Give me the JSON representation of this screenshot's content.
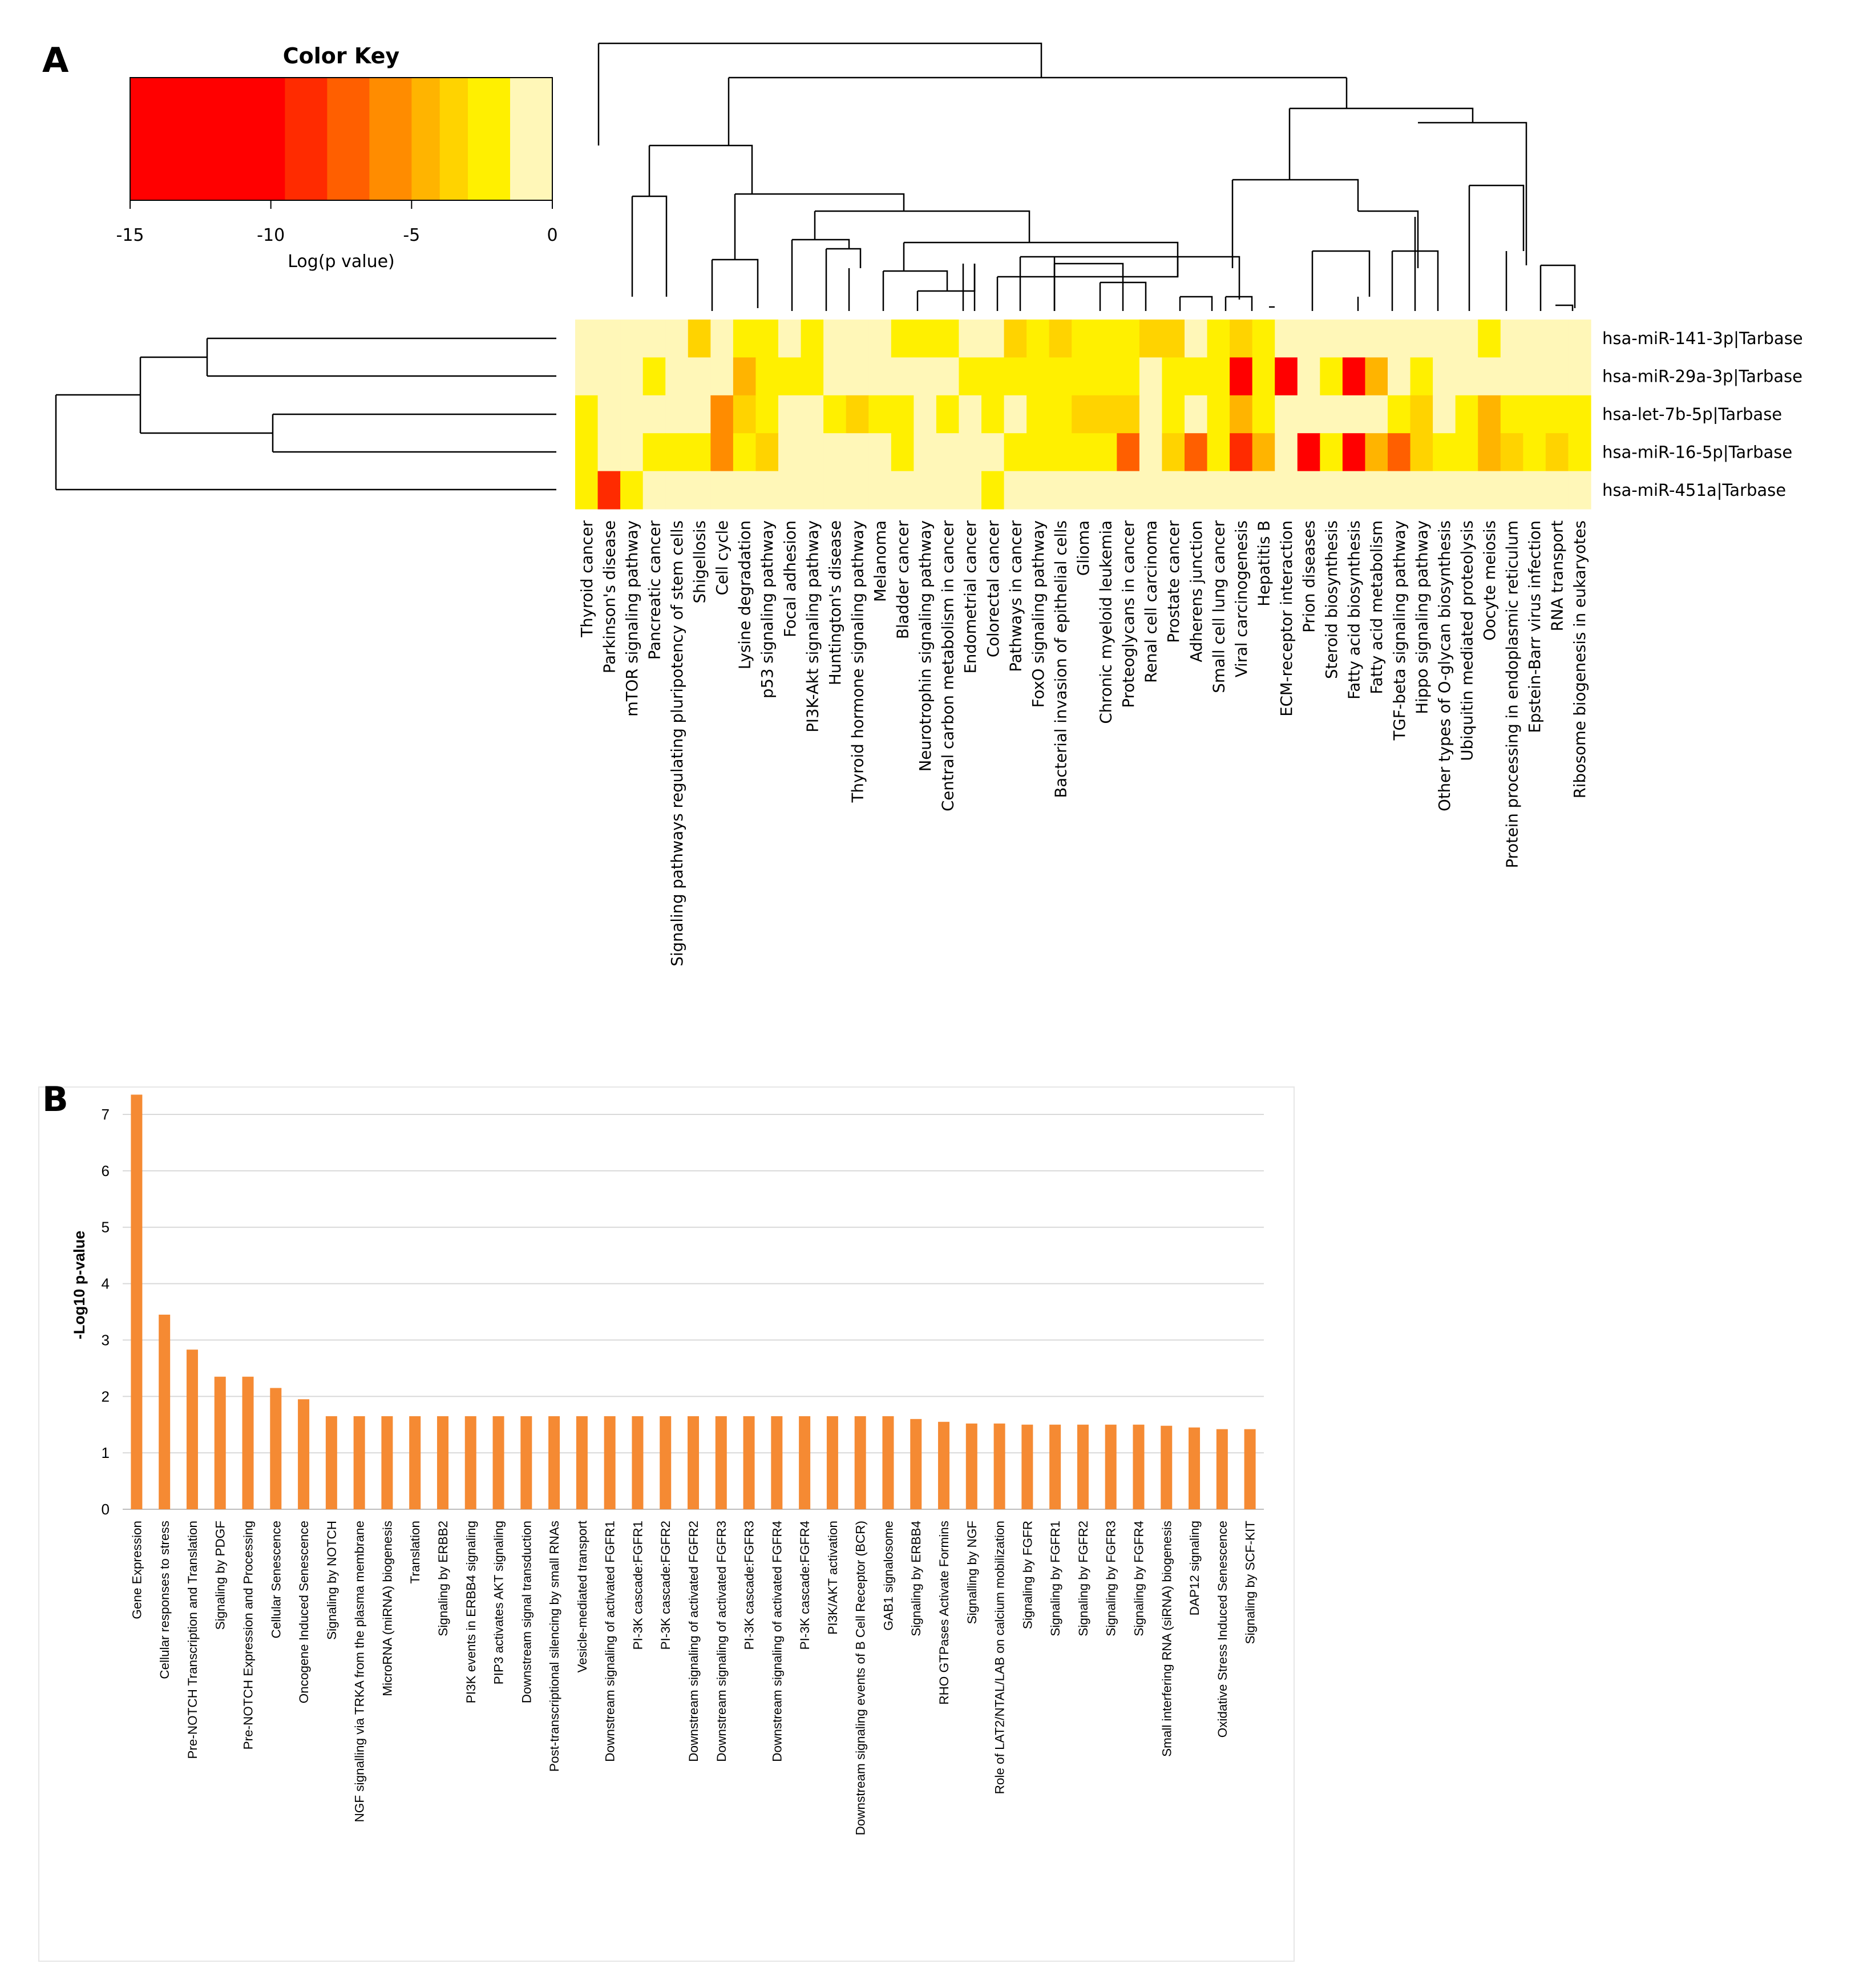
{
  "panel_a": {
    "letter": "A",
    "color_key": {
      "title": "Color Key",
      "xlabel": "Log(p value)",
      "ticks": [
        "-15",
        "-10",
        "-5",
        "0"
      ],
      "range": [
        -15,
        0
      ],
      "bins": [
        {
          "from": -15,
          "to": -9.5,
          "color": "#ff0000"
        },
        {
          "from": -9.5,
          "to": -8,
          "color": "#ff2b00"
        },
        {
          "from": -8,
          "to": -6.5,
          "color": "#ff5f00"
        },
        {
          "from": -6.5,
          "to": -5,
          "color": "#ff8c00"
        },
        {
          "from": -5,
          "to": -4,
          "color": "#ffb400"
        },
        {
          "from": -4,
          "to": -3,
          "color": "#ffd300"
        },
        {
          "from": -3,
          "to": -1.5,
          "color": "#fff000"
        },
        {
          "from": -1.5,
          "to": 0,
          "color": "#fff7b8"
        }
      ]
    }
  },
  "panel_b": {
    "letter": "B"
  },
  "chart_data": [
    {
      "type": "heatmap",
      "title": "",
      "value_label": "Log(p value)",
      "rows": [
        "hsa-miR-141-3p|Tarbase",
        "hsa-miR-29a-3p|Tarbase",
        "hsa-let-7b-5p|Tarbase",
        "hsa-miR-16-5p|Tarbase",
        "hsa-miR-451a|Tarbase"
      ],
      "columns": [
        "Thyroid cancer",
        "Parkinson's disease",
        "mTOR signaling pathway",
        "Pancreatic cancer",
        "Signaling pathways regulating pluripotency of stem cells",
        "Shigellosis",
        "Cell cycle",
        "Lysine degradation",
        "p53 signaling pathway",
        "Focal adhesion",
        "PI3K-Akt signaling pathway",
        "Huntington's disease",
        "Thyroid hormone signaling pathway",
        "Melanoma",
        "Bladder cancer",
        "Neurotrophin signaling pathway",
        "Central carbon metabolism in cancer",
        "Endometrial cancer",
        "Colorectal cancer",
        "Pathways in cancer",
        "FoxO signaling pathway",
        "Bacterial invasion of epithelial cells",
        "Glioma",
        "Chronic myeloid leukemia",
        "Proteoglycans in cancer",
        "Renal cell carcinoma",
        "Prostate cancer",
        "Adherens junction",
        "Small cell lung cancer",
        "Viral carcinogenesis",
        "Hepatitis B",
        "ECM-receptor interaction",
        "Prion diseases",
        "Steroid biosynthesis",
        "Fatty acid biosynthesis",
        "Fatty acid metabolism",
        "TGF-beta signaling pathway",
        "Hippo signaling pathway",
        "Other types of O-glycan biosynthesis",
        "Ubiquitin mediated proteolysis",
        "Oocyte meiosis",
        "Protein processing in endoplasmic reticulum",
        "Epstein-Barr virus infection",
        "RNA transport",
        "Ribosome biogenesis in eukaryotes"
      ],
      "values": [
        [
          0,
          0,
          0,
          0,
          0,
          -3.5,
          0,
          -2.5,
          -2.5,
          0,
          -2.5,
          0,
          0,
          0,
          -2.5,
          -2.5,
          -2.5,
          0,
          0,
          -3.5,
          -2.5,
          -3.5,
          -2.5,
          -2.5,
          -2.5,
          -3.5,
          -3.5,
          0,
          -2.5,
          -3.5,
          -2.5,
          0,
          0,
          0,
          0,
          0,
          0,
          0,
          0,
          0,
          -2.5,
          0,
          0,
          0,
          0
        ],
        [
          0,
          0,
          0,
          -2.5,
          0,
          0,
          0,
          -4,
          -2.5,
          -2.5,
          -2.5,
          0,
          0,
          0,
          0,
          0,
          0,
          -2.5,
          -2.5,
          -2.5,
          -2.5,
          -2.5,
          -2.5,
          -2.5,
          -2.5,
          0,
          -2.5,
          -2.5,
          -2.5,
          -12,
          -2.5,
          -11,
          0,
          -2.5,
          -12,
          -4.5,
          0,
          -2.5,
          0,
          0,
          0,
          0,
          0,
          0,
          0
        ],
        [
          -2.5,
          0,
          0,
          0,
          0,
          0,
          -6,
          -3.5,
          -2.5,
          0,
          0,
          -2.5,
          -3.5,
          -2.5,
          -2.5,
          0,
          -2.5,
          0,
          -2.5,
          0,
          -2.5,
          -2.5,
          -3.5,
          -3.5,
          -3.5,
          0,
          -2.5,
          0,
          -2.5,
          -4.5,
          -2.5,
          0,
          0,
          0,
          0,
          0,
          -2.5,
          -3.5,
          0,
          -2.5,
          -4.5,
          -2.5,
          -2.5,
          -2.5,
          -2.5
        ],
        [
          -2.5,
          0,
          0,
          -2.5,
          -2.5,
          -2.5,
          -5,
          -2.5,
          -3.5,
          0,
          0,
          0,
          0,
          0,
          -2.5,
          0,
          0,
          0,
          0,
          -2.5,
          -2.5,
          -2.5,
          -2.5,
          -2.5,
          -6.5,
          0,
          -3.5,
          -7,
          -2.5,
          -8,
          -4.5,
          0,
          -12,
          -2.5,
          -12,
          -4,
          -7,
          -3.5,
          -2.5,
          -2.5,
          -4,
          -3.5,
          -2.5,
          -3.5,
          -2.5
        ],
        [
          -2.5,
          -8,
          -2.5,
          0,
          0,
          0,
          0,
          0,
          0,
          0,
          0,
          0,
          0,
          0,
          0,
          0,
          0,
          0,
          -2.5,
          0,
          0,
          0,
          0,
          0,
          0,
          0,
          0,
          0,
          0,
          0,
          0,
          0,
          0,
          0,
          0,
          0,
          0,
          0,
          0,
          0,
          0,
          0,
          0,
          0,
          0
        ]
      ]
    },
    {
      "type": "bar",
      "title": "",
      "xlabel": "",
      "ylabel": "-Log10 p-value",
      "ylim": [
        0,
        7
      ],
      "yticks": [
        0,
        1,
        2,
        3,
        4,
        5,
        6,
        7
      ],
      "grid": true,
      "bar_color": "#f58a33",
      "categories": [
        "Gene Expression",
        "Cellular responses to stress",
        "Pre-NOTCH Transcription and Translation",
        "Signaling by PDGF",
        "Pre-NOTCH Expression and Processing",
        "Cellular Senescence",
        "Oncogene Induced Senescence",
        "Signaling by NOTCH",
        "NGF signalling via TRKA from the plasma membrane",
        "MicroRNA (miRNA) biogenesis",
        "Translation",
        "Signaling by ERBB2",
        "PI3K events in ERBB4 signaling",
        "PIP3 activates AKT signaling",
        "Downstream signal transduction",
        "Post-transcriptional silencing by small RNAs",
        "Vesicle-mediated transport",
        "Downstream signaling of activated FGFR1",
        "PI-3K cascade:FGFR1",
        "PI-3K cascade:FGFR2",
        "Downstream signaling of activated FGFR2",
        "Downstream signaling of activated FGFR3",
        "PI-3K cascade:FGFR3",
        "Downstream signaling of activated FGFR4",
        "PI-3K cascade:FGFR4",
        "PI3K/AKT activation",
        "Downstream signaling events of B Cell Receptor (BCR)",
        "GAB1 signalosome",
        "Signaling by ERBB4",
        "RHO GTPases Activate Formins",
        "Signalling by NGF",
        "Role of LAT2/NTAL/LAB on calcium mobilization",
        "Signaling by FGFR",
        "Signaling by FGFR1",
        "Signaling by FGFR2",
        "Signaling by FGFR3",
        "Signaling by FGFR4",
        "Small interfering RNA (siRNA) biogenesis",
        "DAP12 signaling",
        "Oxidative Stress Induced Senescence",
        "Signaling by SCF-KIT"
      ],
      "values": [
        7.35,
        3.45,
        2.83,
        2.35,
        2.35,
        2.15,
        1.95,
        1.65,
        1.65,
        1.65,
        1.65,
        1.65,
        1.65,
        1.65,
        1.65,
        1.65,
        1.65,
        1.65,
        1.65,
        1.65,
        1.65,
        1.65,
        1.65,
        1.65,
        1.65,
        1.65,
        1.65,
        1.65,
        1.6,
        1.55,
        1.52,
        1.52,
        1.5,
        1.5,
        1.5,
        1.5,
        1.5,
        1.48,
        1.45,
        1.42,
        1.42
      ]
    }
  ]
}
